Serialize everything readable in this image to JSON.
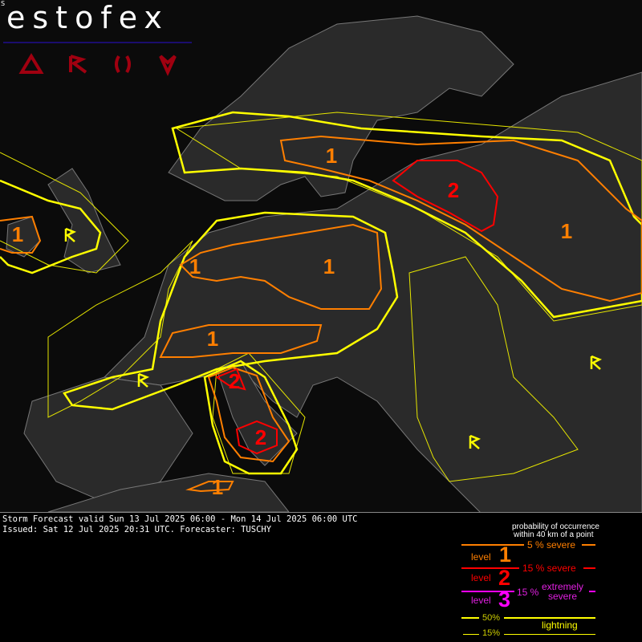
{
  "brand": {
    "title": "estofex",
    "corner_mark": "S",
    "icons": [
      "hail-icon",
      "lightning-icon",
      "wind-icon",
      "tornado-icon"
    ],
    "icon_color": "#a00010"
  },
  "forecast": {
    "valid": "Storm Forecast valid Sun 13 Jul 2025 06:00 - Mon 14 Jul 2025 06:00 UTC",
    "issued": "Issued: Sat 12 Jul 2025 20:31 UTC. Forecaster: TUSCHY"
  },
  "map": {
    "colors": {
      "lightning": "#ffff00",
      "level1": "#ff7f00",
      "level2": "#ff0000",
      "level3": "#ff00ff"
    },
    "labels": [
      {
        "text": "1",
        "level": 1,
        "region": "Scandinavia/Baltic"
      },
      {
        "text": "2",
        "level": 2,
        "region": "Southern Finland/Western Russia"
      },
      {
        "text": "1",
        "level": 1,
        "region": "Western Russia"
      },
      {
        "text": "1",
        "level": 1,
        "region": "Ireland"
      },
      {
        "text": "1",
        "level": 1,
        "region": "Belgium/Netherlands"
      },
      {
        "text": "1",
        "level": 1,
        "region": "Germany/Poland"
      },
      {
        "text": "1",
        "level": 1,
        "region": "Alps"
      },
      {
        "text": "2",
        "level": 2,
        "region": "Northern Italy"
      },
      {
        "text": "2",
        "level": 2,
        "region": "Southern Italy/Tyrrhenian"
      },
      {
        "text": "1",
        "level": 1,
        "region": "Northern Africa"
      }
    ],
    "lightning_markers": [
      "Great Britain",
      "France/Spain",
      "Southern Russia",
      "Turkey"
    ]
  },
  "legend": {
    "title_line1": "probability of occurrence",
    "title_line2": "within 40 km of a point",
    "five_severe": "5 % severe",
    "fifteen_severe": "15 % severe",
    "fifteen": "15 %",
    "extremely": "extremely",
    "severe": "severe",
    "level_word": "level",
    "level1": "1",
    "level2": "2",
    "level3": "3",
    "p50": "50%",
    "p15": "15%",
    "lightning": "lightning"
  }
}
